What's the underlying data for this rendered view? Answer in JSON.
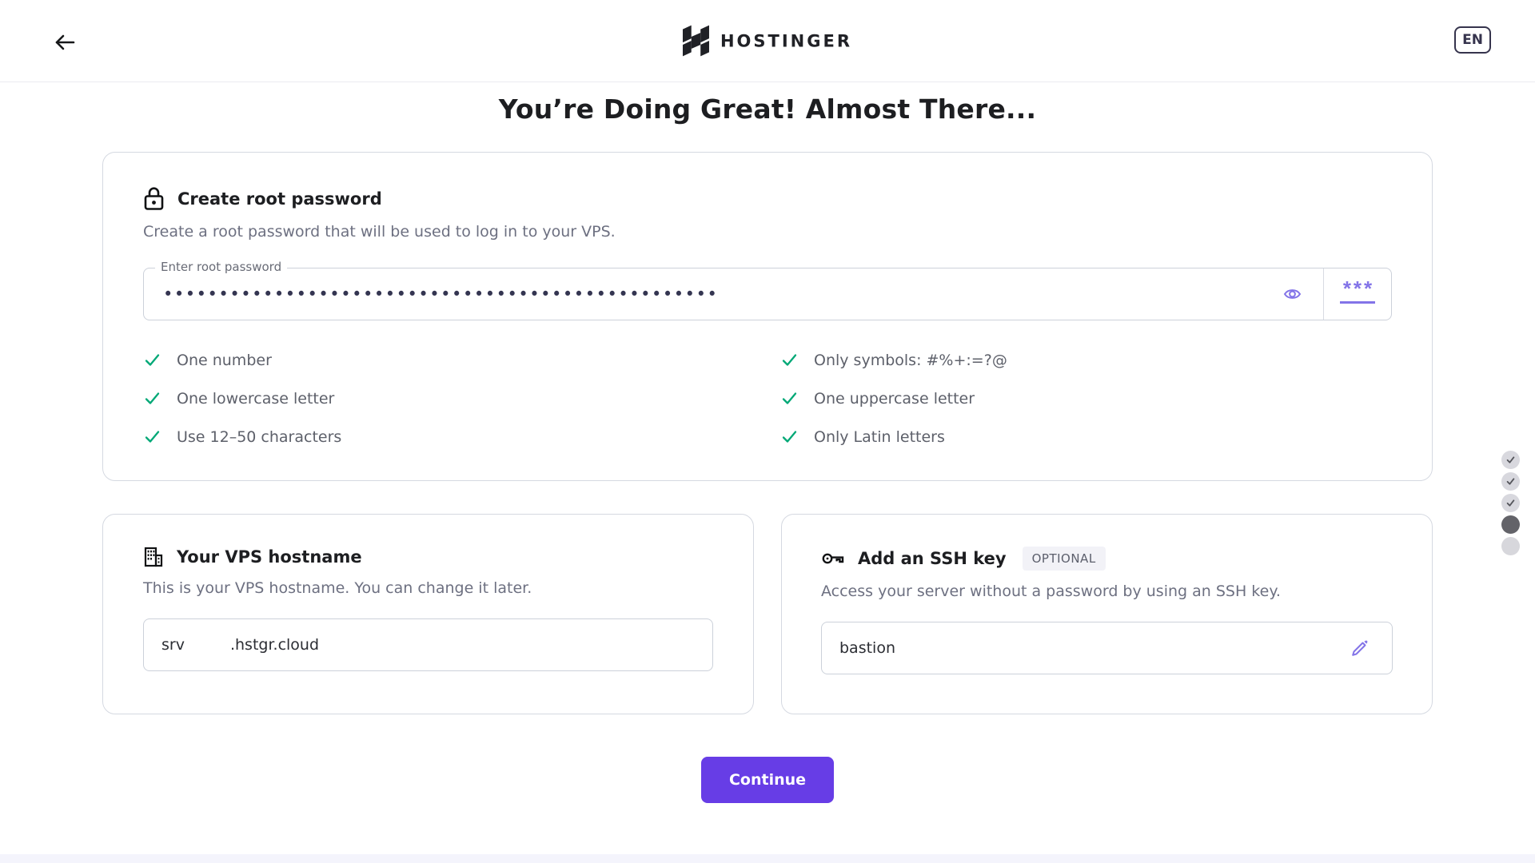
{
  "colors": {
    "accent": "#673de6",
    "icon_purple": "#8374e8",
    "success": "#00a876",
    "footer_bar": "#f4f4fc"
  },
  "header": {
    "brand": "HOSTINGER",
    "language": "EN"
  },
  "page": {
    "title": "You’re Doing Great! Almost There..."
  },
  "password_card": {
    "title": "Create root password",
    "description": "Create a root password that will be used to log in to your VPS.",
    "input": {
      "label": "Enter root password",
      "masked_value": "••••••••••••••••••••••••••••••••••••••••••••••••••",
      "generate_glyph": "***"
    },
    "rules_left": [
      "One number",
      "One lowercase letter",
      "Use 12–50 characters"
    ],
    "rules_right": [
      "Only symbols: #%+:=?@",
      "One uppercase letter",
      "Only Latin letters"
    ]
  },
  "hostname_card": {
    "title": "Your VPS hostname",
    "description": "This is your VPS hostname. You can change it later.",
    "input": {
      "prefix": "srv",
      "suffix": ".hstgr.cloud"
    }
  },
  "ssh_card": {
    "title": "Add an SSH key",
    "badge": "OPTIONAL",
    "description": "Access your server without a password by using an SSH key.",
    "input": {
      "value": "bastion"
    }
  },
  "actions": {
    "continue_label": "Continue"
  },
  "stepper": {
    "steps": [
      {
        "state": "done"
      },
      {
        "state": "done"
      },
      {
        "state": "done"
      },
      {
        "state": "current"
      },
      {
        "state": "upcoming"
      }
    ]
  }
}
